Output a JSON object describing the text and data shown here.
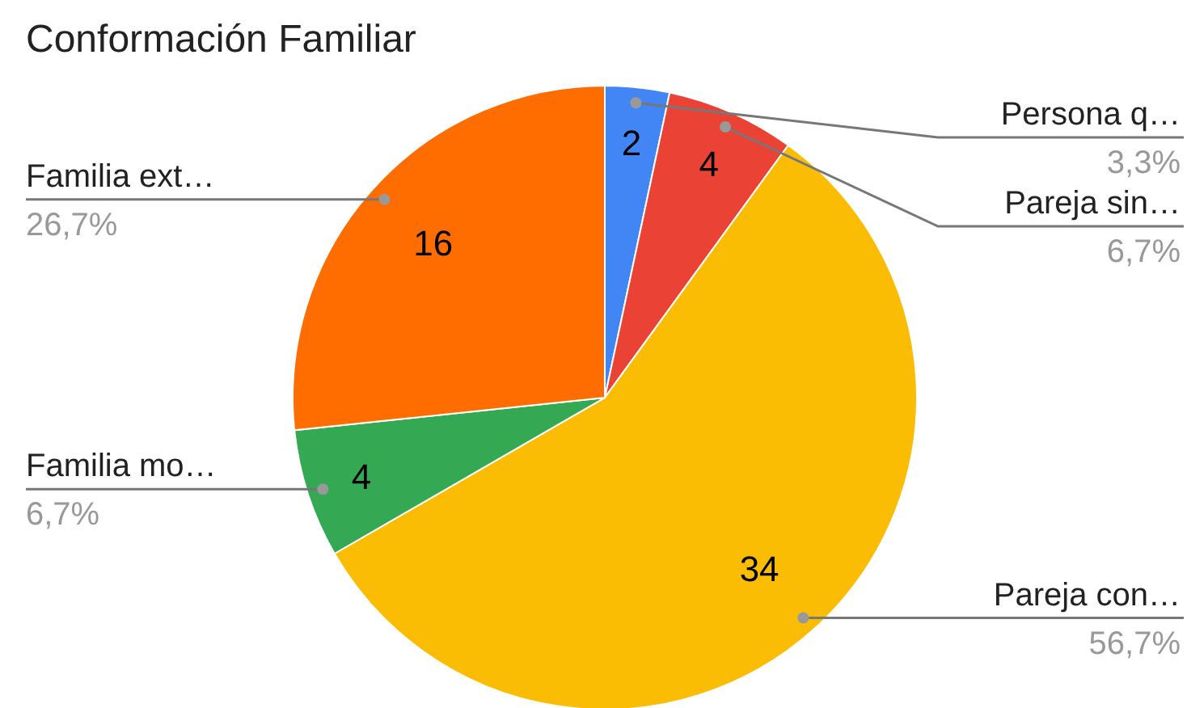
{
  "chart_data": {
    "type": "pie",
    "title": "Conformación Familiar",
    "categories": [
      "Persona q…",
      "Pareja sin…",
      "Pareja con…",
      "Familia mo…",
      "Familia ext…"
    ],
    "values": [
      2,
      4,
      34,
      4,
      16
    ],
    "colors": [
      "#4285f4",
      "#ea4335",
      "#fbbc04",
      "#34a853",
      "#ff6d01"
    ],
    "data_labels": true,
    "annotations": [
      "3,3%",
      "6,7%",
      "56,7%",
      "6,7%",
      "26,7%"
    ]
  }
}
